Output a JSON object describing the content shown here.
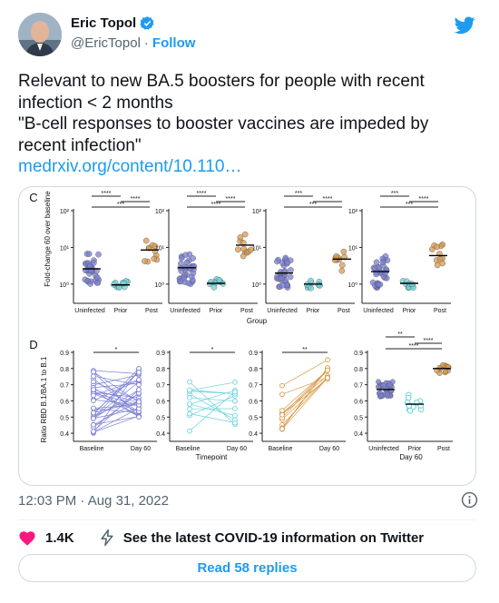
{
  "author": {
    "name": "Eric Topol",
    "handle": "@EricTopol",
    "separator": "·",
    "follow_label": "Follow"
  },
  "tweet": {
    "lines": [
      "Relevant to new BA.5 boosters for people with recent",
      "infection < 2 months",
      "\"B-cell responses to booster vaccines are impeded by",
      "recent infection\""
    ],
    "link_text": "medrxiv.org/content/10.110…"
  },
  "meta": {
    "timestamp": "12:03 PM · Aug 31, 2022"
  },
  "actions": {
    "like_count": "1.4K",
    "covid_label": "See the latest COVID-19 information on Twitter",
    "replies_label": "Read 58 replies"
  },
  "colors": {
    "accent": "#1d9bf0",
    "like": "#f91880",
    "uninfected": "#7b7fd6",
    "prior": "#6dd3d9",
    "post": "#d99a4a"
  },
  "icons": [
    "verified-icon",
    "twitter-bird-icon",
    "info-icon",
    "heart-icon",
    "lightning-icon"
  ],
  "chart_data": [
    {
      "type": "scatter",
      "panel_letter": "C",
      "ylabel": "Fold-change 60 over baseline",
      "xlabel": "Group",
      "y_scale": "log",
      "ylim": [
        0.3,
        100
      ],
      "y_ticks": [
        "10⁰",
        "10¹",
        "10²"
      ],
      "categories": [
        "Uninfected",
        "Prior",
        "Post"
      ],
      "significance": [
        "****",
        "****",
        "***"
      ],
      "subpanels": [
        {
          "medians": [
            2.6,
            0.95,
            8.5
          ],
          "sig": [
            "****",
            "****",
            "***"
          ]
        },
        {
          "medians": [
            2.8,
            1.05,
            11.5
          ],
          "sig": [
            "****",
            "****",
            "****"
          ]
        },
        {
          "medians": [
            2.0,
            1.0,
            4.8
          ],
          "sig": [
            "***",
            "****",
            "***"
          ]
        },
        {
          "medians": [
            2.2,
            1.05,
            6.0
          ],
          "sig": [
            "***",
            "****",
            "***"
          ]
        }
      ]
    },
    {
      "type": "line",
      "panel_letter": "D",
      "ylabel": "Ratio RBD B.1/BA.1 to B.1",
      "xlabel": "Timepoint",
      "ylim": [
        0.35,
        0.9
      ],
      "y_ticks": [
        "0.4",
        "0.5",
        "0.6",
        "0.7",
        "0.8",
        "0.9"
      ],
      "categories": [
        "Baseline",
        "Day 60"
      ],
      "subpanels": [
        {
          "group": "Uninfected",
          "sig": "*"
        },
        {
          "group": "Prior",
          "sig": "*"
        },
        {
          "group": "Post",
          "sig": "**"
        }
      ]
    },
    {
      "type": "scatter",
      "xlabel": "Day 60",
      "ylim": [
        0.35,
        0.9
      ],
      "y_ticks": [
        "0.4",
        "0.5",
        "0.6",
        "0.7",
        "0.8",
        "0.9"
      ],
      "categories": [
        "Uninfected",
        "Prior",
        "Post"
      ],
      "medians": [
        0.67,
        0.58,
        0.8
      ],
      "significance": [
        "**",
        "****",
        "****"
      ]
    }
  ]
}
